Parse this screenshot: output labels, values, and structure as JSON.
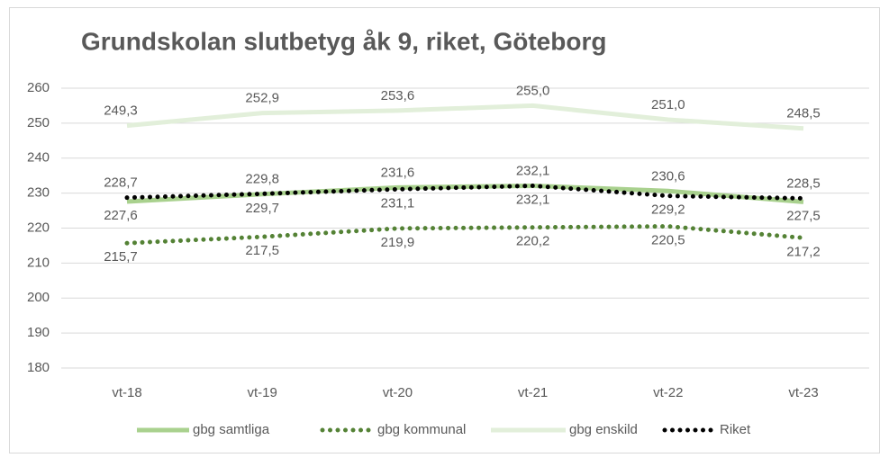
{
  "chart_data": {
    "type": "line",
    "title": "Grundskolan slutbetyg åk 9, riket, Göteborg",
    "categories": [
      "vt-18",
      "vt-19",
      "vt-20",
      "vt-21",
      "vt-22",
      "vt-23"
    ],
    "ylim": [
      180,
      260
    ],
    "yticks": [
      180,
      190,
      200,
      210,
      220,
      230,
      240,
      250,
      260
    ],
    "grid": true,
    "legend": "bottom",
    "series": [
      {
        "name": "gbg samtliga",
        "color": "#a9d18e",
        "style": "solid",
        "values": [
          227.6,
          229.7,
          231.6,
          232.1,
          230.6,
          227.5
        ],
        "value_labels": [
          "227,6",
          "229,7",
          "231,6",
          "232,1",
          "230,6",
          "227,5"
        ]
      },
      {
        "name": "gbg kommunal",
        "color": "#548235",
        "style": "dotted",
        "values": [
          215.7,
          217.5,
          219.9,
          220.2,
          220.5,
          217.2
        ],
        "value_labels": [
          "215,7",
          "217,5",
          "219,9",
          "220,2",
          "220,5",
          "217,2"
        ]
      },
      {
        "name": "gbg enskild",
        "color": "#e2efda",
        "style": "solid",
        "values": [
          249.3,
          252.9,
          253.6,
          255.0,
          251.0,
          248.5
        ],
        "value_labels": [
          "249,3",
          "252,9",
          "253,6",
          "255,0",
          "251,0",
          "248,5"
        ]
      },
      {
        "name": "Riket",
        "color": "#000000",
        "style": "dotted",
        "values": [
          228.7,
          229.8,
          231.1,
          232.1,
          229.2,
          228.5
        ],
        "value_labels": [
          "228,7",
          "229,8",
          "231,1",
          "232,1",
          "229,2",
          "228,5"
        ]
      }
    ]
  }
}
